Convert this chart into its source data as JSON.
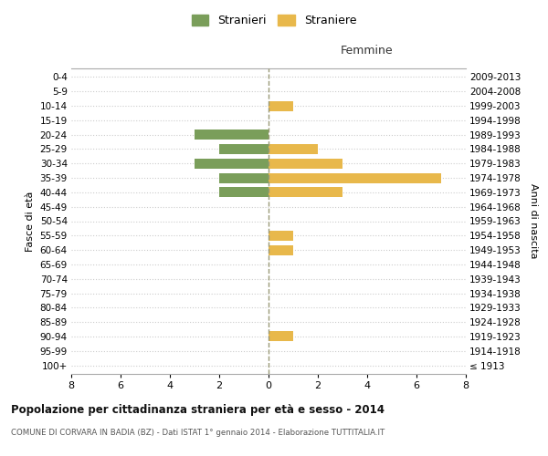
{
  "age_groups": [
    "100+",
    "95-99",
    "90-94",
    "85-89",
    "80-84",
    "75-79",
    "70-74",
    "65-69",
    "60-64",
    "55-59",
    "50-54",
    "45-49",
    "40-44",
    "35-39",
    "30-34",
    "25-29",
    "20-24",
    "15-19",
    "10-14",
    "5-9",
    "0-4"
  ],
  "birth_years": [
    "≤ 1913",
    "1914-1918",
    "1919-1923",
    "1924-1928",
    "1929-1933",
    "1934-1938",
    "1939-1943",
    "1944-1948",
    "1949-1953",
    "1954-1958",
    "1959-1963",
    "1964-1968",
    "1969-1973",
    "1974-1978",
    "1979-1983",
    "1984-1988",
    "1989-1993",
    "1994-1998",
    "1999-2003",
    "2004-2008",
    "2009-2013"
  ],
  "stranieri": [
    0,
    0,
    0,
    0,
    0,
    0,
    0,
    0,
    0,
    0,
    0,
    0,
    2,
    2,
    3,
    2,
    3,
    0,
    0,
    0,
    0
  ],
  "straniere": [
    0,
    0,
    1,
    0,
    0,
    0,
    0,
    0,
    1,
    1,
    0,
    0,
    3,
    7,
    3,
    2,
    0,
    0,
    1,
    0,
    0
  ],
  "color_stranieri": "#7a9e5a",
  "color_straniere": "#e8b84b",
  "title": "Popolazione per cittadinanza straniera per età e sesso - 2014",
  "subtitle": "COMUNE DI CORVARA IN BADIA (BZ) - Dati ISTAT 1° gennaio 2014 - Elaborazione TUTTITALIA.IT",
  "xlabel_right": "Femmine",
  "ylabel_left": "Fasce di età",
  "ylabel_right": "Anni di nascita",
  "legend_stranieri": "Stranieri",
  "legend_straniere": "Straniere",
  "xlim": 8,
  "background_color": "#ffffff",
  "grid_color": "#cccccc",
  "bar_height": 0.7
}
